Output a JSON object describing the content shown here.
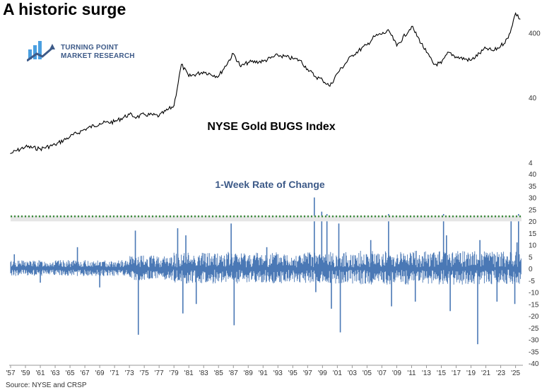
{
  "headline": "A historic surge",
  "logo": {
    "line1": "TURNING POINT",
    "line2": "MARKET RESEARCH",
    "icon": "bar-chart-arrow-icon",
    "color": "#3d5a88",
    "accent": "#4a9fe0"
  },
  "source": "Source: NYSE and CRSP",
  "chart_data": [
    {
      "type": "line",
      "title": "NYSE Gold BUGS Index",
      "scale": "log",
      "ylim": [
        4,
        900
      ],
      "ytick_labels": [
        "4",
        "40",
        "400"
      ],
      "ytick_values": [
        4,
        40,
        400
      ],
      "color": "#000000",
      "x": [
        1957,
        1959,
        1961,
        1963,
        1965,
        1967,
        1969,
        1971,
        1973,
        1974,
        1975,
        1977,
        1979,
        1980,
        1981,
        1983,
        1985,
        1987,
        1988,
        1989,
        1991,
        1993,
        1995,
        1996,
        1997,
        1998,
        1999,
        2000,
        2001,
        2003,
        2005,
        2006,
        2008,
        2009,
        2011,
        2013,
        2014,
        2015,
        2016,
        2017,
        2019,
        2021,
        2022,
        2023,
        2024,
        2025,
        2025.6
      ],
      "values": [
        5.5,
        7,
        6.5,
        7.5,
        10,
        13,
        16,
        17,
        22,
        20,
        22,
        21,
        30,
        130,
        85,
        100,
        85,
        190,
        120,
        140,
        145,
        180,
        160,
        150,
        110,
        85,
        75,
        60,
        95,
        180,
        260,
        350,
        420,
        250,
        500,
        200,
        130,
        135,
        200,
        170,
        150,
        230,
        210,
        250,
        330,
        800,
        650
      ]
    },
    {
      "type": "bar",
      "title": "1-Week Rate of Change",
      "ylim": [
        -40,
        40
      ],
      "ytick_labels": [
        "40",
        "35",
        "30",
        "25",
        "20",
        "15",
        "10",
        "5",
        "0",
        "-5",
        "-10",
        "-15",
        "-20",
        "-25",
        "-30",
        "-35",
        "-40"
      ],
      "color": "#4a78b5",
      "threshold": {
        "value": 22,
        "color": "#3a8a3a",
        "style": "dotted"
      },
      "x": [
        1957.5,
        1961,
        1966,
        1969,
        1973.8,
        1974.2,
        1979.5,
        1980.2,
        1980.6,
        1982,
        1986.7,
        1987.1,
        1991.5,
        1997.9,
        1998.1,
        1998.9,
        1999.6,
        2000.2,
        2001.2,
        2001.4,
        2005.5,
        2007.9,
        2008.3,
        2011.5,
        2015.3,
        2015.7,
        2016.2,
        2019.9,
        2020.2,
        2022.5,
        2024.4,
        2024.9,
        2025.2,
        2025.4
      ],
      "values": [
        6,
        -6,
        9,
        -8,
        16,
        -28,
        17,
        -19,
        14,
        -15,
        19,
        -24,
        9,
        30,
        -10,
        24,
        23,
        -17,
        19,
        -27,
        12,
        23,
        -16,
        -14,
        23,
        14,
        -18,
        -32,
        12,
        -14,
        21,
        -15,
        11,
        23
      ]
    }
  ],
  "x_axis": {
    "labels": [
      "'57",
      "'59",
      "'61",
      "'63",
      "'65",
      "'67",
      "'69",
      "'71",
      "'73",
      "'75",
      "'77",
      "'79",
      "'81",
      "'83",
      "'85",
      "'87",
      "'89",
      "'91",
      "'93",
      "'95",
      "'97",
      "'99",
      "'01",
      "'03",
      "'05",
      "'07",
      "'09",
      "'11",
      "'13",
      "'15",
      "'17",
      "'19",
      "'21",
      "'23",
      "'25"
    ],
    "years": [
      1957,
      1959,
      1961,
      1963,
      1965,
      1967,
      1969,
      1971,
      1973,
      1975,
      1977,
      1979,
      1981,
      1983,
      1985,
      1987,
      1989,
      1991,
      1993,
      1995,
      1997,
      1999,
      2001,
      2003,
      2005,
      2007,
      2009,
      2011,
      2013,
      2015,
      2017,
      2019,
      2021,
      2023,
      2025
    ]
  }
}
